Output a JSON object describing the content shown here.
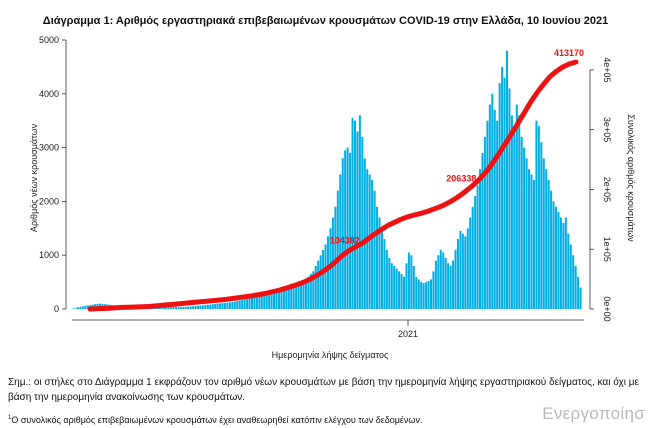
{
  "chart_data": {
    "type": "bar",
    "title": "Διάγραμμα 1: Αριθμός εργαστηριακά επιβεβαιωμένων κρουσμάτων COVID-19 στην Ελλάδα, 10 Ιουνίου 2021",
    "xlabel": "Ημερομηνία λήψης δείγματος",
    "ylabel": "Αριθμός νέων κρουσμάτων",
    "y2label": "Συνολικός αριθμός κρουσμάτων",
    "ylim": [
      0,
      5000
    ],
    "y2lim": [
      0,
      450000
    ],
    "y_ticks": [
      "0",
      "1000",
      "2000",
      "3000",
      "4000",
      "5000"
    ],
    "y2_ticks": [
      "0e+00",
      "1e+05",
      "2e+05",
      "3e+05",
      "4e+05"
    ],
    "x_tick_label": "2021",
    "bar_color": "#00aee6",
    "line_color": "#ee1111",
    "series": [
      {
        "kind": "bar",
        "values": [
          6,
          16,
          34,
          37,
          50,
          60,
          65,
          70,
          80,
          90,
          95,
          100,
          95,
          90,
          85,
          78,
          72,
          65,
          60,
          55,
          50,
          45,
          40,
          38,
          36,
          35,
          34,
          34,
          35,
          36,
          38,
          40,
          42,
          45,
          48,
          50,
          52,
          50,
          48,
          45,
          42,
          40,
          38,
          36,
          38,
          40,
          42,
          45,
          48,
          52,
          55,
          60,
          65,
          70,
          75,
          80,
          85,
          90,
          95,
          100,
          105,
          110,
          115,
          120,
          125,
          130,
          140,
          150,
          160,
          170,
          180,
          190,
          200,
          210,
          220,
          230,
          240,
          250,
          260,
          270,
          280,
          290,
          300,
          310,
          320,
          330,
          340,
          350,
          360,
          380,
          400,
          420,
          440,
          460,
          500,
          550,
          600,
          650,
          700,
          800,
          900,
          1000,
          1100,
          1200,
          1350,
          1500,
          1700,
          1900,
          2200,
          2500,
          2800,
          2950,
          3000,
          2900,
          3550,
          3500,
          3300,
          3600,
          3200,
          2800,
          2600,
          2500,
          2400,
          2200,
          1900,
          1700,
          1500,
          1300,
          1100,
          950,
          850,
          800,
          750,
          700,
          650,
          600,
          850,
          1050,
          1000,
          800,
          600,
          550,
          500,
          480,
          500,
          520,
          550,
          700,
          900,
          1000,
          1100,
          1050,
          950,
          850,
          800,
          900,
          1100,
          1300,
          1450,
          1400,
          1350,
          1500,
          1700,
          1900,
          2100,
          2300,
          2600,
          2900,
          3200,
          3500,
          3800,
          4000,
          3700,
          3500,
          4200,
          4500,
          4300,
          4800,
          4100,
          3600,
          3400,
          3800,
          3600,
          3200,
          3000,
          2800,
          2600,
          2500,
          2400,
          3500,
          3400,
          3100,
          2800,
          2600,
          2400,
          2200,
          2000,
          1900,
          1800,
          1700,
          1600,
          1700,
          1400,
          1200,
          1000,
          800,
          600,
          400
        ]
      },
      {
        "kind": "line",
        "name": "",
        "values": [
          0,
          400,
          800,
          1300,
          2000,
          2600,
          3000,
          3400,
          3800,
          4200,
          5000,
          6000,
          7000,
          8000,
          9000,
          10000,
          11000,
          12000,
          13000,
          14000,
          15000,
          16000,
          17500,
          19000,
          20500,
          22000,
          24000,
          26000,
          28500,
          31000,
          34000,
          37500,
          41000,
          45000,
          50000,
          56000,
          63000,
          71000,
          80000,
          90000,
          98000,
          104000,
          110000,
          118000,
          126000,
          133000,
          140000,
          145000,
          150000,
          154000,
          157000,
          160000,
          163000,
          167000,
          171000,
          176000,
          182000,
          189000,
          197000,
          206000,
          216000,
          228000,
          242000,
          258000,
          275000,
          292000,
          310000,
          328000,
          346000,
          362000,
          376000,
          389000,
          398000,
          405000,
          410000,
          413170
        ]
      }
    ],
    "annotations": [
      "413170",
      "206338",
      "104382"
    ]
  },
  "note_main": "Σημ.: οι στήλες στο Διάγραμμα 1 εκφράζουν τον αριθμό νέων κρουσμάτων με βάση την ημερομηνία λήψης εργαστηριακού δείγματος, και όχι με βάση την ημερομηνία ανακοίνωσης των κρουσμάτων.",
  "footnote_marker": "1",
  "footnote": "Ο συνολικός αριθμός επιβεβαιωμένων κρουσμάτων έχει αναθεωρηθεί κατόπιν ελέγχου των δεδομένων.",
  "watermark": "Ενεργοποίησ"
}
